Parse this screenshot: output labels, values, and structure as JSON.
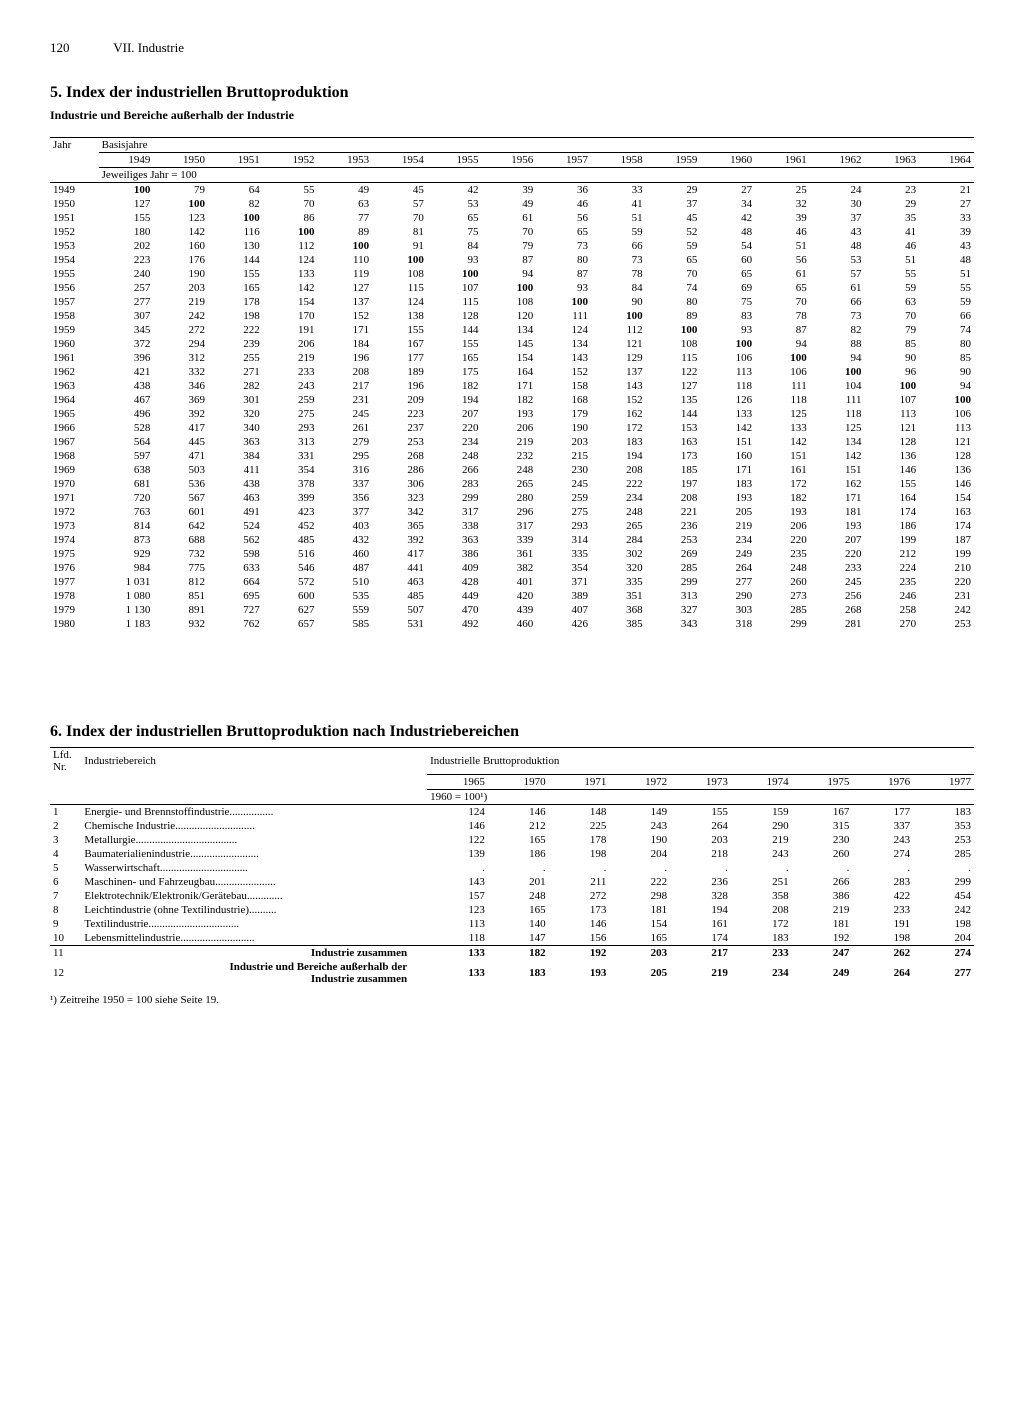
{
  "header": {
    "page_number": "120",
    "chapter": "VII. Industrie"
  },
  "table1": {
    "title": "5. Index der industriellen Bruttoproduktion",
    "subtitle": "Industrie und Bereiche außerhalb der Industrie",
    "row_header": "Jahr",
    "col_group_header": "Basisjahre",
    "unit_note": "Jeweiliges Jahr = 100",
    "base_years": [
      "1949",
      "1950",
      "1951",
      "1952",
      "1953",
      "1954",
      "1955",
      "1956",
      "1957",
      "1958",
      "1959",
      "1960",
      "1961",
      "1962",
      "1963",
      "1964"
    ],
    "years": [
      "1949",
      "1950",
      "1951",
      "1952",
      "1953",
      "1954",
      "1955",
      "1956",
      "1957",
      "1958",
      "1959",
      "1960",
      "1961",
      "1962",
      "1963",
      "1964",
      "1965",
      "1966",
      "1967",
      "1968",
      "1969",
      "1970",
      "1971",
      "1972",
      "1973",
      "1974",
      "1975",
      "1976",
      "1977",
      "1978",
      "1979",
      "1980"
    ],
    "data": [
      [
        100,
        79,
        64,
        55,
        49,
        45,
        42,
        39,
        36,
        33,
        29,
        27,
        25,
        24,
        23,
        21
      ],
      [
        127,
        100,
        82,
        70,
        63,
        57,
        53,
        49,
        46,
        41,
        37,
        34,
        32,
        30,
        29,
        27
      ],
      [
        155,
        123,
        100,
        86,
        77,
        70,
        65,
        61,
        56,
        51,
        45,
        42,
        39,
        37,
        35,
        33
      ],
      [
        180,
        142,
        116,
        100,
        89,
        81,
        75,
        70,
        65,
        59,
        52,
        48,
        46,
        43,
        41,
        39
      ],
      [
        202,
        160,
        130,
        112,
        100,
        91,
        84,
        79,
        73,
        66,
        59,
        54,
        51,
        48,
        46,
        43
      ],
      [
        223,
        176,
        144,
        124,
        110,
        100,
        93,
        87,
        80,
        73,
        65,
        60,
        56,
        53,
        51,
        48
      ],
      [
        240,
        190,
        155,
        133,
        119,
        108,
        100,
        94,
        87,
        78,
        70,
        65,
        61,
        57,
        55,
        51
      ],
      [
        257,
        203,
        165,
        142,
        127,
        115,
        107,
        100,
        93,
        84,
        74,
        69,
        65,
        61,
        59,
        55
      ],
      [
        277,
        219,
        178,
        154,
        137,
        124,
        115,
        108,
        100,
        90,
        80,
        75,
        70,
        66,
        63,
        59
      ],
      [
        307,
        242,
        198,
        170,
        152,
        138,
        128,
        120,
        111,
        100,
        89,
        83,
        78,
        73,
        70,
        66
      ],
      [
        345,
        272,
        222,
        191,
        171,
        155,
        144,
        134,
        124,
        112,
        100,
        93,
        87,
        82,
        79,
        74
      ],
      [
        372,
        294,
        239,
        206,
        184,
        167,
        155,
        145,
        134,
        121,
        108,
        100,
        94,
        88,
        85,
        80
      ],
      [
        396,
        312,
        255,
        219,
        196,
        177,
        165,
        154,
        143,
        129,
        115,
        106,
        100,
        94,
        90,
        85
      ],
      [
        421,
        332,
        271,
        233,
        208,
        189,
        175,
        164,
        152,
        137,
        122,
        113,
        106,
        100,
        96,
        90
      ],
      [
        438,
        346,
        282,
        243,
        217,
        196,
        182,
        171,
        158,
        143,
        127,
        118,
        111,
        104,
        100,
        94
      ],
      [
        467,
        369,
        301,
        259,
        231,
        209,
        194,
        182,
        168,
        152,
        135,
        126,
        118,
        111,
        107,
        100
      ],
      [
        496,
        392,
        320,
        275,
        245,
        223,
        207,
        193,
        179,
        162,
        144,
        133,
        125,
        118,
        113,
        106
      ],
      [
        528,
        417,
        340,
        293,
        261,
        237,
        220,
        206,
        190,
        172,
        153,
        142,
        133,
        125,
        121,
        113
      ],
      [
        564,
        445,
        363,
        313,
        279,
        253,
        234,
        219,
        203,
        183,
        163,
        151,
        142,
        134,
        128,
        121
      ],
      [
        597,
        471,
        384,
        331,
        295,
        268,
        248,
        232,
        215,
        194,
        173,
        160,
        151,
        142,
        136,
        128
      ],
      [
        638,
        503,
        411,
        354,
        316,
        286,
        266,
        248,
        230,
        208,
        185,
        171,
        161,
        151,
        146,
        136
      ],
      [
        681,
        536,
        438,
        378,
        337,
        306,
        283,
        265,
        245,
        222,
        197,
        183,
        172,
        162,
        155,
        146
      ],
      [
        720,
        567,
        463,
        399,
        356,
        323,
        299,
        280,
        259,
        234,
        208,
        193,
        182,
        171,
        164,
        154
      ],
      [
        763,
        601,
        491,
        423,
        377,
        342,
        317,
        296,
        275,
        248,
        221,
        205,
        193,
        181,
        174,
        163
      ],
      [
        814,
        642,
        524,
        452,
        403,
        365,
        338,
        317,
        293,
        265,
        236,
        219,
        206,
        193,
        186,
        174
      ],
      [
        873,
        688,
        562,
        485,
        432,
        392,
        363,
        339,
        314,
        284,
        253,
        234,
        220,
        207,
        199,
        187
      ],
      [
        929,
        732,
        598,
        516,
        460,
        417,
        386,
        361,
        335,
        302,
        269,
        249,
        235,
        220,
        212,
        199
      ],
      [
        984,
        775,
        633,
        546,
        487,
        441,
        409,
        382,
        354,
        320,
        285,
        264,
        248,
        233,
        224,
        210
      ],
      [
        "1 031",
        812,
        664,
        572,
        510,
        463,
        428,
        401,
        371,
        335,
        299,
        277,
        260,
        245,
        235,
        220
      ],
      [
        "1 080",
        851,
        695,
        600,
        535,
        485,
        449,
        420,
        389,
        351,
        313,
        290,
        273,
        256,
        246,
        231
      ],
      [
        "1 130",
        891,
        727,
        627,
        559,
        507,
        470,
        439,
        407,
        368,
        327,
        303,
        285,
        268,
        258,
        242
      ],
      [
        "1 183",
        932,
        762,
        657,
        585,
        531,
        492,
        460,
        426,
        385,
        343,
        318,
        299,
        281,
        270,
        253
      ]
    ],
    "diag_bold": true
  },
  "table2": {
    "title": "6. Index der industriellen Bruttoproduktion nach Industriebereichen",
    "nr_header": "Lfd.\nNr.",
    "label_header": "Industriebereich",
    "value_group_header": "Industrielle Bruttoproduktion",
    "unit_note": "1960 = 100¹)",
    "years": [
      "1965",
      "1970",
      "1971",
      "1972",
      "1973",
      "1974",
      "1975",
      "1976",
      "1977"
    ],
    "rows": [
      {
        "nr": "1",
        "label": "Energie- und Brennstoffindustrie",
        "vals": [
          124,
          146,
          148,
          149,
          155,
          159,
          167,
          177,
          183
        ]
      },
      {
        "nr": "2",
        "label": "Chemische Industrie",
        "vals": [
          146,
          212,
          225,
          243,
          264,
          290,
          315,
          337,
          353
        ]
      },
      {
        "nr": "3",
        "label": "Metallurgie",
        "vals": [
          122,
          165,
          178,
          190,
          203,
          219,
          230,
          243,
          253
        ]
      },
      {
        "nr": "4",
        "label": "Baumaterialienindustrie",
        "vals": [
          139,
          186,
          198,
          204,
          218,
          243,
          260,
          274,
          285
        ]
      },
      {
        "nr": "5",
        "label": "Wasserwirtschaft",
        "vals": [
          ".",
          ".",
          ".",
          ".",
          ".",
          ".",
          ".",
          ".",
          "."
        ]
      },
      {
        "nr": "6",
        "label": "Maschinen- und Fahrzeugbau",
        "vals": [
          143,
          201,
          211,
          222,
          236,
          251,
          266,
          283,
          299
        ]
      },
      {
        "nr": "7",
        "label": "Elektrotechnik/Elektronik/Gerätebau",
        "vals": [
          157,
          248,
          272,
          298,
          328,
          358,
          386,
          422,
          454
        ]
      },
      {
        "nr": "8",
        "label": "Leichtindustrie (ohne Textilindustrie)",
        "vals": [
          123,
          165,
          173,
          181,
          194,
          208,
          219,
          233,
          242
        ]
      },
      {
        "nr": "9",
        "label": "Textilindustrie",
        "vals": [
          113,
          140,
          146,
          154,
          161,
          172,
          181,
          191,
          198
        ]
      },
      {
        "nr": "10",
        "label": "Lebensmittelindustrie",
        "vals": [
          118,
          147,
          156,
          165,
          174,
          183,
          192,
          198,
          204
        ]
      }
    ],
    "summary_rows": [
      {
        "nr": "11",
        "label": "Industrie zusammen",
        "vals": [
          133,
          182,
          192,
          203,
          217,
          233,
          247,
          262,
          274
        ],
        "bold": true
      },
      {
        "nr": "12",
        "label": "Industrie und Bereiche außerhalb der Industrie zusammen",
        "vals": [
          133,
          183,
          193,
          205,
          219,
          234,
          249,
          264,
          277
        ],
        "bold": true
      }
    ],
    "footnote": "¹) Zeitreihe 1950 = 100 siehe Seite 19."
  }
}
